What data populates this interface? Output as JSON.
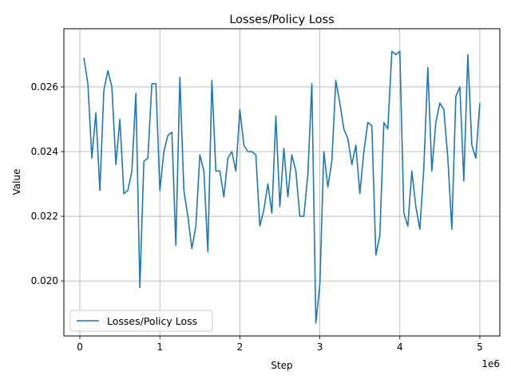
{
  "chart_data": {
    "type": "line",
    "title": "Losses/Policy Loss",
    "xlabel": "Step",
    "ylabel": "Value",
    "x_offset_label": "1e6",
    "xlim": [
      -200000,
      5250000
    ],
    "ylim": [
      0.0183,
      0.0278
    ],
    "xticks": [
      0,
      1000000,
      2000000,
      3000000,
      4000000,
      5000000
    ],
    "xtick_labels": [
      "0",
      "1",
      "2",
      "3",
      "4",
      "5"
    ],
    "yticks": [
      0.02,
      0.022,
      0.024,
      0.026
    ],
    "ytick_labels": [
      "0.020",
      "0.022",
      "0.024",
      "0.026"
    ],
    "grid": true,
    "legend": "lower-left",
    "series": [
      {
        "name": "Losses/Policy Loss",
        "color": "#1f77b4",
        "x": [
          50000,
          100000,
          150000,
          200000,
          250000,
          300000,
          350000,
          400000,
          450000,
          500000,
          550000,
          600000,
          650000,
          700000,
          750000,
          800000,
          850000,
          900000,
          950000,
          1000000,
          1050000,
          1100000,
          1150000,
          1200000,
          1250000,
          1300000,
          1350000,
          1400000,
          1450000,
          1500000,
          1550000,
          1600000,
          1650000,
          1700000,
          1750000,
          1800000,
          1850000,
          1900000,
          1950000,
          2000000,
          2050000,
          2100000,
          2150000,
          2200000,
          2250000,
          2300000,
          2350000,
          2400000,
          2450000,
          2500000,
          2550000,
          2600000,
          2650000,
          2700000,
          2750000,
          2800000,
          2850000,
          2900000,
          2950000,
          3000000,
          3050000,
          3100000,
          3150000,
          3200000,
          3250000,
          3300000,
          3350000,
          3400000,
          3450000,
          3500000,
          3550000,
          3600000,
          3650000,
          3700000,
          3750000,
          3800000,
          3850000,
          3900000,
          3950000,
          4000000,
          4050000,
          4100000,
          4150000,
          4200000,
          4250000,
          4300000,
          4350000,
          4400000,
          4450000,
          4500000,
          4550000,
          4600000,
          4650000,
          4700000,
          4750000,
          4800000,
          4850000,
          4900000,
          4950000,
          5000000
        ],
        "values": [
          0.0269,
          0.0261,
          0.0238,
          0.0252,
          0.0228,
          0.0259,
          0.0265,
          0.026,
          0.0236,
          0.025,
          0.0227,
          0.0228,
          0.0234,
          0.0258,
          0.0198,
          0.0237,
          0.0238,
          0.0261,
          0.0261,
          0.0228,
          0.024,
          0.0245,
          0.0246,
          0.0211,
          0.0263,
          0.0228,
          0.022,
          0.021,
          0.0217,
          0.0239,
          0.0234,
          0.0209,
          0.0262,
          0.0234,
          0.0234,
          0.0226,
          0.0238,
          0.024,
          0.0234,
          0.0253,
          0.0242,
          0.024,
          0.024,
          0.0239,
          0.0217,
          0.0222,
          0.023,
          0.0221,
          0.0251,
          0.0223,
          0.0241,
          0.0226,
          0.0239,
          0.0234,
          0.022,
          0.022,
          0.0233,
          0.0261,
          0.0187,
          0.0199,
          0.024,
          0.0229,
          0.0237,
          0.0262,
          0.0255,
          0.0247,
          0.0244,
          0.0236,
          0.0242,
          0.0227,
          0.024,
          0.0249,
          0.0248,
          0.0208,
          0.0214,
          0.0249,
          0.0247,
          0.0271,
          0.027,
          0.0271,
          0.0221,
          0.0217,
          0.0234,
          0.0223,
          0.0216,
          0.0235,
          0.0266,
          0.0234,
          0.0249,
          0.0255,
          0.0253,
          0.0238,
          0.0216,
          0.0257,
          0.026,
          0.0231,
          0.027,
          0.0242,
          0.0238,
          0.0255
        ]
      }
    ]
  }
}
